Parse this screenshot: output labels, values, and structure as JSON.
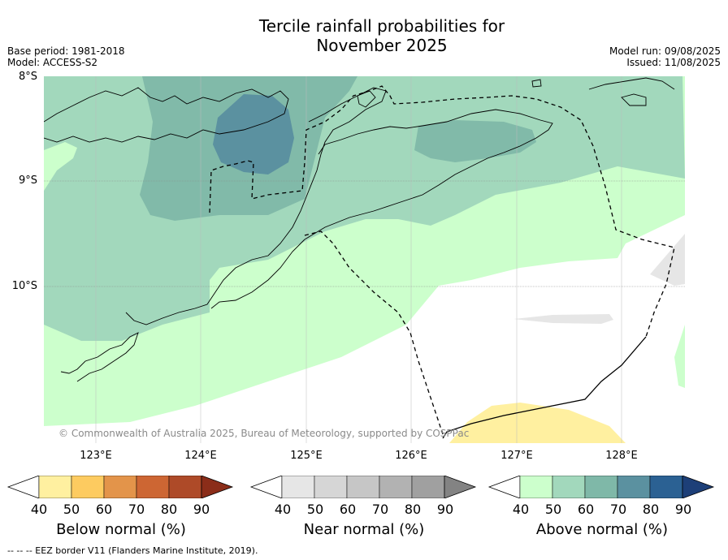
{
  "title_line1": "Tercile rainfall probabilities for",
  "title_line2": "November 2025",
  "meta_left": {
    "base_period": "Base period: 1981-2018",
    "model": "Model: ACCESS-S2"
  },
  "meta_right": {
    "model_run": "Model run: 09/08/2025",
    "issued": "Issued: 11/08/2025"
  },
  "lat_labels": [
    "8°S",
    "9°S",
    "10°S"
  ],
  "lon_labels": [
    "123°E",
    "124°E",
    "125°E",
    "126°E",
    "127°E",
    "128°E"
  ],
  "copyright": "© Commonwealth of Australia 2025, Bureau of Meteorology, supported by COSPPac",
  "colorbars": [
    {
      "title": "Below normal (%)",
      "ticks": [
        "40",
        "50",
        "60",
        "70",
        "80",
        "90"
      ],
      "colors": [
        "#ffffff",
        "#fff0a0",
        "#fdcb60",
        "#e3944a",
        "#cd6633",
        "#ae4a28",
        "#8b2d19"
      ]
    },
    {
      "title": "Near normal (%)",
      "ticks": [
        "40",
        "50",
        "60",
        "70",
        "80",
        "90"
      ],
      "colors": [
        "#ffffff",
        "#e6e6e6",
        "#d6d6d6",
        "#c6c6c6",
        "#b2b2b2",
        "#a0a0a0",
        "#838383"
      ]
    },
    {
      "title": "Above normal (%)",
      "ticks": [
        "40",
        "50",
        "60",
        "70",
        "80",
        "90"
      ],
      "colors": [
        "#ffffff",
        "#ccffcc",
        "#a2d8bc",
        "#7fb8a8",
        "#5b91a0",
        "#2b6193",
        "#1d3f78"
      ]
    }
  ],
  "footer": "--  --  -- EEZ border V11 (Flanders Marine Institute, 2019)."
}
